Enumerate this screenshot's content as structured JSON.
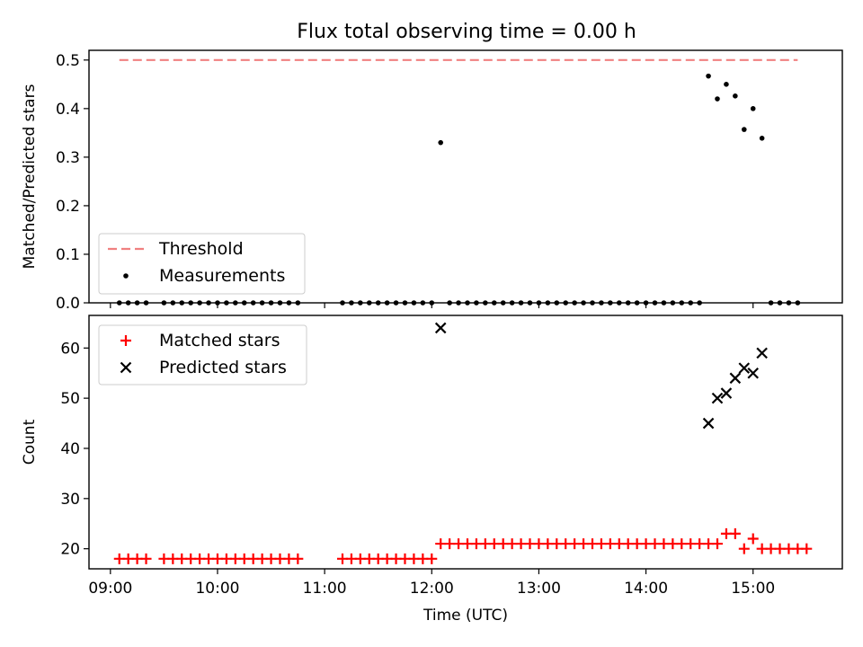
{
  "title": "Flux total observing time = 0.00 h",
  "chart_data": [
    {
      "type": "scatter",
      "panel": "top",
      "ylabel": "Matched/Predicted stars",
      "ylim": [
        0,
        0.52
      ],
      "yticks": [
        0.0,
        0.1,
        0.2,
        0.3,
        0.4,
        0.5
      ],
      "yticklabels": [
        "0.0",
        "0.1",
        "0.2",
        "0.3",
        "0.4",
        "0.5"
      ],
      "threshold": {
        "name": "Threshold",
        "value": 0.5,
        "x_range": [
          "09:05",
          "15:25"
        ],
        "color": "#f08080"
      },
      "legend": {
        "placement": "lower-left",
        "entries": [
          "Threshold",
          "Measurements"
        ]
      },
      "series": [
        {
          "name": "Measurements",
          "marker": "dot",
          "color": "#000000",
          "points": [
            [
              "09:05",
              0
            ],
            [
              "09:10",
              0
            ],
            [
              "09:15",
              0
            ],
            [
              "09:20",
              0
            ],
            [
              "09:30",
              0
            ],
            [
              "09:35",
              0
            ],
            [
              "09:40",
              0
            ],
            [
              "09:45",
              0
            ],
            [
              "09:50",
              0
            ],
            [
              "09:55",
              0
            ],
            [
              "10:00",
              0
            ],
            [
              "10:05",
              0
            ],
            [
              "10:10",
              0
            ],
            [
              "10:15",
              0
            ],
            [
              "10:20",
              0
            ],
            [
              "10:25",
              0
            ],
            [
              "10:30",
              0
            ],
            [
              "10:35",
              0
            ],
            [
              "10:40",
              0
            ],
            [
              "10:45",
              0
            ],
            [
              "11:10",
              0
            ],
            [
              "11:15",
              0
            ],
            [
              "11:20",
              0
            ],
            [
              "11:25",
              0
            ],
            [
              "11:30",
              0
            ],
            [
              "11:35",
              0
            ],
            [
              "11:40",
              0
            ],
            [
              "11:45",
              0
            ],
            [
              "11:50",
              0
            ],
            [
              "11:55",
              0
            ],
            [
              "12:00",
              0
            ],
            [
              "12:05",
              0.33
            ],
            [
              "12:10",
              0
            ],
            [
              "12:15",
              0
            ],
            [
              "12:20",
              0
            ],
            [
              "12:25",
              0
            ],
            [
              "12:30",
              0
            ],
            [
              "12:35",
              0
            ],
            [
              "12:40",
              0
            ],
            [
              "12:45",
              0
            ],
            [
              "12:50",
              0
            ],
            [
              "12:55",
              0
            ],
            [
              "13:00",
              0
            ],
            [
              "13:05",
              0
            ],
            [
              "13:10",
              0
            ],
            [
              "13:15",
              0
            ],
            [
              "13:20",
              0
            ],
            [
              "13:25",
              0
            ],
            [
              "13:30",
              0
            ],
            [
              "13:35",
              0
            ],
            [
              "13:40",
              0
            ],
            [
              "13:45",
              0
            ],
            [
              "13:50",
              0
            ],
            [
              "13:55",
              0
            ],
            [
              "14:00",
              0
            ],
            [
              "14:05",
              0
            ],
            [
              "14:10",
              0
            ],
            [
              "14:15",
              0
            ],
            [
              "14:20",
              0
            ],
            [
              "14:25",
              0
            ],
            [
              "14:30",
              0
            ],
            [
              "14:35",
              0.467
            ],
            [
              "14:40",
              0.42
            ],
            [
              "14:45",
              0.45
            ],
            [
              "14:50",
              0.426
            ],
            [
              "14:55",
              0.357
            ],
            [
              "15:00",
              0.4
            ],
            [
              "15:05",
              0.339
            ],
            [
              "15:10",
              0
            ],
            [
              "15:15",
              0
            ],
            [
              "15:20",
              0
            ],
            [
              "15:25",
              0
            ]
          ]
        }
      ]
    },
    {
      "type": "scatter",
      "panel": "bottom",
      "xlabel": "Time (UTC)",
      "ylabel": "Count",
      "ylim": [
        16,
        66.5
      ],
      "yticks": [
        20,
        30,
        40,
        50,
        60
      ],
      "yticklabels": [
        "20",
        "30",
        "40",
        "50",
        "60"
      ],
      "xlim": [
        "08:48",
        "15:50"
      ],
      "xticks": [
        "09:00",
        "10:00",
        "11:00",
        "12:00",
        "13:00",
        "14:00",
        "15:00"
      ],
      "xticklabels": [
        "09:00",
        "10:00",
        "11:00",
        "12:00",
        "13:00",
        "14:00",
        "15:00"
      ],
      "legend": {
        "placement": "upper-left",
        "entries": [
          "Matched stars",
          "Predicted stars"
        ]
      },
      "series": [
        {
          "name": "Matched stars",
          "marker": "plus",
          "color": "#ff0000",
          "points": [
            [
              "09:05",
              18
            ],
            [
              "09:10",
              18
            ],
            [
              "09:15",
              18
            ],
            [
              "09:20",
              18
            ],
            [
              "09:30",
              18
            ],
            [
              "09:35",
              18
            ],
            [
              "09:40",
              18
            ],
            [
              "09:45",
              18
            ],
            [
              "09:50",
              18
            ],
            [
              "09:55",
              18
            ],
            [
              "10:00",
              18
            ],
            [
              "10:05",
              18
            ],
            [
              "10:10",
              18
            ],
            [
              "10:15",
              18
            ],
            [
              "10:20",
              18
            ],
            [
              "10:25",
              18
            ],
            [
              "10:30",
              18
            ],
            [
              "10:35",
              18
            ],
            [
              "10:40",
              18
            ],
            [
              "10:45",
              18
            ],
            [
              "11:10",
              18
            ],
            [
              "11:15",
              18
            ],
            [
              "11:20",
              18
            ],
            [
              "11:25",
              18
            ],
            [
              "11:30",
              18
            ],
            [
              "11:35",
              18
            ],
            [
              "11:40",
              18
            ],
            [
              "11:45",
              18
            ],
            [
              "11:50",
              18
            ],
            [
              "11:55",
              18
            ],
            [
              "12:00",
              18
            ],
            [
              "12:05",
              21
            ],
            [
              "12:10",
              21
            ],
            [
              "12:15",
              21
            ],
            [
              "12:20",
              21
            ],
            [
              "12:25",
              21
            ],
            [
              "12:30",
              21
            ],
            [
              "12:35",
              21
            ],
            [
              "12:40",
              21
            ],
            [
              "12:45",
              21
            ],
            [
              "12:50",
              21
            ],
            [
              "12:55",
              21
            ],
            [
              "13:00",
              21
            ],
            [
              "13:05",
              21
            ],
            [
              "13:10",
              21
            ],
            [
              "13:15",
              21
            ],
            [
              "13:20",
              21
            ],
            [
              "13:25",
              21
            ],
            [
              "13:30",
              21
            ],
            [
              "13:35",
              21
            ],
            [
              "13:40",
              21
            ],
            [
              "13:45",
              21
            ],
            [
              "13:50",
              21
            ],
            [
              "13:55",
              21
            ],
            [
              "14:00",
              21
            ],
            [
              "14:05",
              21
            ],
            [
              "14:10",
              21
            ],
            [
              "14:15",
              21
            ],
            [
              "14:20",
              21
            ],
            [
              "14:25",
              21
            ],
            [
              "14:30",
              21
            ],
            [
              "14:35",
              21
            ],
            [
              "14:40",
              21
            ],
            [
              "14:45",
              23
            ],
            [
              "14:50",
              23
            ],
            [
              "14:55",
              20
            ],
            [
              "15:00",
              22
            ],
            [
              "15:05",
              20
            ],
            [
              "15:10",
              20
            ],
            [
              "15:15",
              20
            ],
            [
              "15:20",
              20
            ],
            [
              "15:25",
              20
            ],
            [
              "15:30",
              20
            ]
          ]
        },
        {
          "name": "Predicted stars",
          "marker": "x",
          "color": "#000000",
          "points": [
            [
              "12:05",
              64
            ],
            [
              "14:35",
              45
            ],
            [
              "14:40",
              50
            ],
            [
              "14:45",
              51
            ],
            [
              "14:50",
              54
            ],
            [
              "14:55",
              56
            ],
            [
              "15:00",
              55
            ],
            [
              "15:05",
              59
            ]
          ]
        }
      ]
    }
  ]
}
